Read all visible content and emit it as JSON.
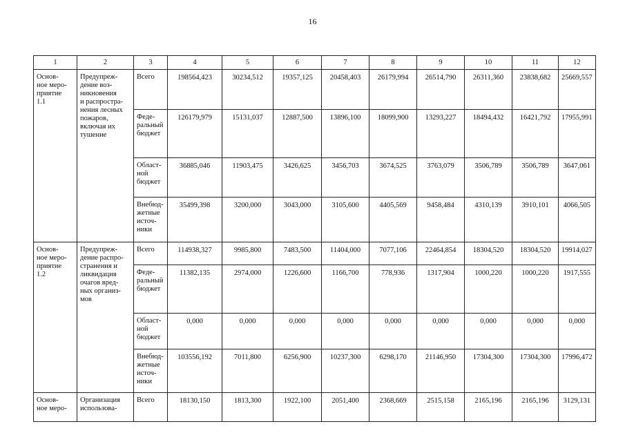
{
  "page_number": "16",
  "table": {
    "headers": [
      "1",
      "2",
      "3",
      "4",
      "5",
      "6",
      "7",
      "8",
      "9",
      "10",
      "11",
      "12"
    ],
    "groups": [
      {
        "activity": "Основ-ное меро-приятие 1.1",
        "activity_lines": [
          "Основ-",
          "ное меро-",
          "приятие",
          "1.1"
        ],
        "description_lines": [
          "Предупреж-",
          "дение воз-",
          "никновения",
          "и распростра-",
          "нения лесных",
          "пожаров,",
          "включая их",
          "тушение"
        ],
        "rows": [
          {
            "source_lines": [
              "Всего"
            ],
            "values": [
              "198564,423",
              "30234,512",
              "19357,125",
              "20458,403",
              "26179,994",
              "26514,790",
              "26311,360",
              "23838,682",
              "25669,557"
            ]
          },
          {
            "source_lines": [
              "Феде-",
              "ральный",
              "бюджет"
            ],
            "values": [
              "126179,979",
              "15131,037",
              "12887,500",
              "13896,100",
              "18099,900",
              "13293,227",
              "18494,432",
              "16421,792",
              "17955,991"
            ]
          },
          {
            "source_lines": [
              "Област-",
              "ной",
              "бюджет"
            ],
            "values": [
              "36885,046",
              "11903,475",
              "3426,625",
              "3456,703",
              "3674,525",
              "3763,079",
              "3506,789",
              "3506,789",
              "3647,061"
            ]
          },
          {
            "source_lines": [
              "Внебюд-",
              "жетные",
              "источ-",
              "ники"
            ],
            "values": [
              "35499,398",
              "3200,000",
              "3043,000",
              "3105,600",
              "4405,569",
              "9458,484",
              "4310,139",
              "3910,101",
              "4066,505"
            ]
          }
        ]
      },
      {
        "activity_lines": [
          "Основ-",
          "ное меро-",
          "приятие",
          "1.2"
        ],
        "description_lines": [
          "Предупреж-",
          "дение распро-",
          "странения и",
          "ликвидация",
          "очагов вред-",
          "ных организ-",
          "мов"
        ],
        "rows": [
          {
            "source_lines": [
              "Всего"
            ],
            "values": [
              "114938,327",
              "9985,800",
              "7483,500",
              "11404,000",
              "7077,106",
              "22464,854",
              "18304,520",
              "18304,520",
              "19914,027"
            ]
          },
          {
            "source_lines": [
              "Феде-",
              "ральный",
              "бюджет"
            ],
            "values": [
              "11382,135",
              "2974,000",
              "1226,600",
              "1166,700",
              "778,936",
              "1317,904",
              "1000,220",
              "1000,220",
              "1917,555"
            ]
          },
          {
            "source_lines": [
              "Област-",
              "ной",
              "бюджет"
            ],
            "values": [
              "0,000",
              "0,000",
              "0,000",
              "0,000",
              "0,000",
              "0,000",
              "0,000",
              "0,000",
              "0,000"
            ]
          },
          {
            "source_lines": [
              "Внебюд-",
              "жетные",
              "источ-",
              "ники"
            ],
            "values": [
              "103556,192",
              "7011,800",
              "6256,900",
              "10237,300",
              "6298,170",
              "21146,950",
              "17304,300",
              "17304,300",
              "17996,472"
            ]
          }
        ]
      },
      {
        "activity_lines": [
          "Основ-",
          "ное меро-"
        ],
        "description_lines": [
          "Организация",
          "использова-"
        ],
        "rows": [
          {
            "source_lines": [
              "Всего"
            ],
            "values": [
              "18130,150",
              "1813,300",
              "1922,100",
              "2051,400",
              "2368,669",
              "2515,158",
              "2165,196",
              "2165,196",
              "3129,131"
            ]
          }
        ]
      }
    ]
  }
}
